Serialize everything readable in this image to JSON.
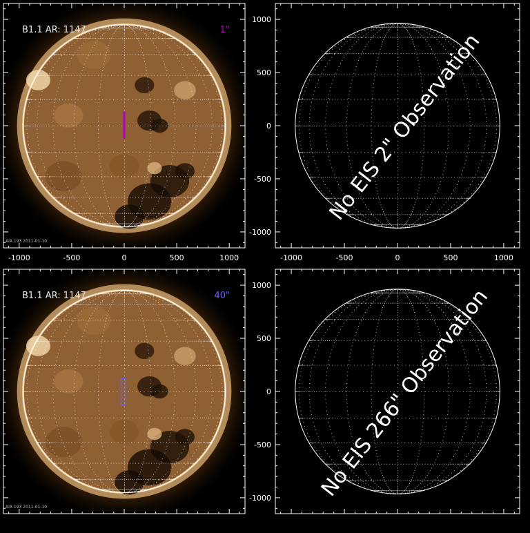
{
  "panels": [
    {
      "id": "top-left",
      "type": "sun",
      "label": "B1.1  AR: 1147",
      "slit_label": "1\"",
      "slit_color": "#b000c0",
      "slit_type": "line",
      "footer": "AIA 193  2011-01-10"
    },
    {
      "id": "top-right",
      "type": "empty",
      "message": "No EIS 2\" Observation"
    },
    {
      "id": "bottom-left",
      "type": "sun",
      "label": "B1.1  AR: 1147",
      "slit_label": "40\"",
      "slit_color": "#6a5cff",
      "slit_type": "box",
      "footer": "AIA 193  2011-01-10"
    },
    {
      "id": "bottom-right",
      "type": "empty",
      "message": "No EIS 266\" Observation"
    }
  ],
  "axes": {
    "x_ticks": [
      "-1000",
      "-500",
      "0",
      "500",
      "1000"
    ],
    "y_ticks": [
      "1000",
      "500",
      "0",
      "-500",
      "-1000"
    ]
  },
  "colors": {
    "background": "#000000",
    "axis": "#ffffff",
    "sun_core": "#8a5a2e",
    "sun_corona": "#f0c890"
  }
}
